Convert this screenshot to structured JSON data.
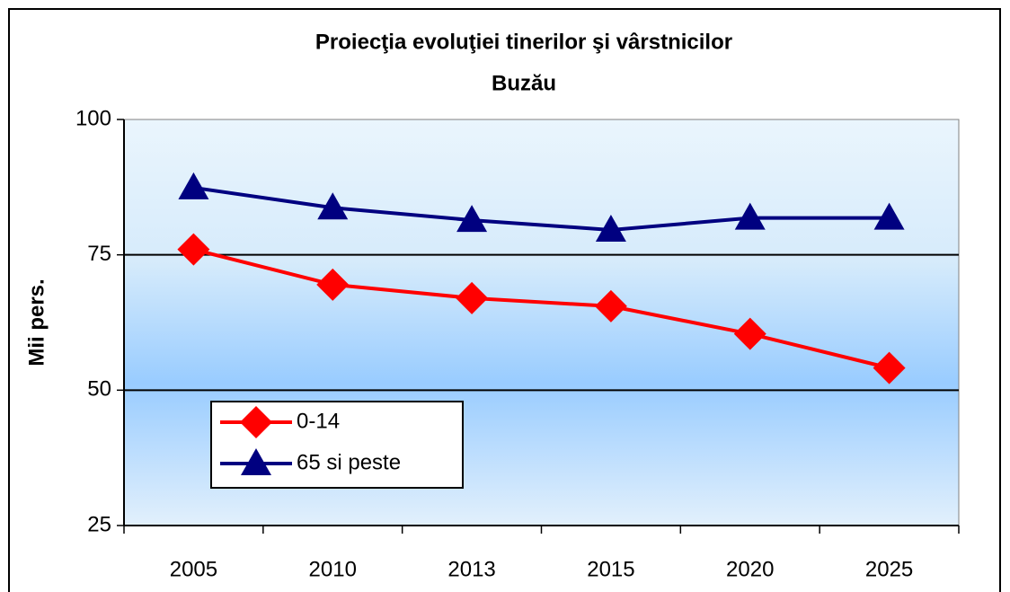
{
  "chart_data": {
    "type": "line",
    "title": [
      "Proiecţia evoluţiei tinerilor şi vârstnicilor",
      "Buzău"
    ],
    "y_label": "Mii pers.",
    "categories": [
      "2005",
      "2010",
      "2013",
      "2015",
      "2020",
      "2025"
    ],
    "series": [
      {
        "name": "0-14",
        "color": "#ff0000",
        "marker": "diamond",
        "values": [
          76.0,
          69.5,
          67.0,
          65.5,
          60.4,
          54.1
        ]
      },
      {
        "name": "65 si peste",
        "color": "#000080",
        "marker": "triangle",
        "values": [
          87.4,
          83.7,
          81.4,
          79.6,
          81.8,
          81.8
        ]
      }
    ],
    "ylim": [
      25,
      100
    ],
    "yticks": [
      25,
      50,
      75,
      100
    ],
    "grid": true,
    "legend": "lower left"
  }
}
